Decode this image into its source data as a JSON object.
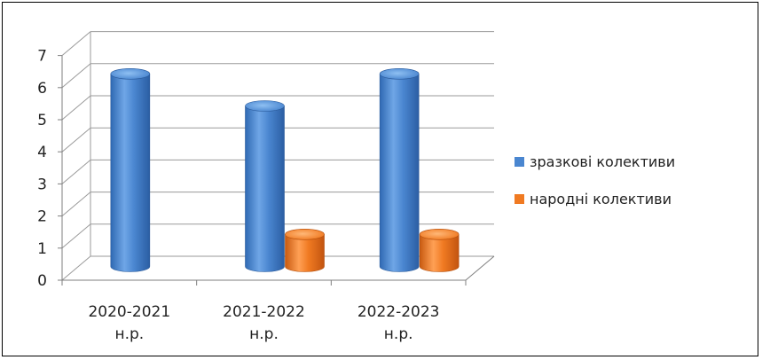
{
  "chart_data": {
    "type": "bar",
    "style": "3d-cylinder",
    "categories": [
      [
        "2020-2021",
        "н.р."
      ],
      [
        "2021-2022",
        "н.р."
      ],
      [
        "2022-2023",
        "н.р."
      ]
    ],
    "series": [
      {
        "name": "зразкові колективи",
        "values": [
          6,
          5,
          6
        ],
        "color": "#4a86d0"
      },
      {
        "name": "народні колективи",
        "values": [
          0,
          1,
          1
        ],
        "color": "#f07a22"
      }
    ],
    "yticks": [
      "0",
      "1",
      "2",
      "3",
      "4",
      "5",
      "6",
      "7"
    ],
    "ylim": [
      0,
      7
    ],
    "grid": true,
    "legend": "right"
  }
}
